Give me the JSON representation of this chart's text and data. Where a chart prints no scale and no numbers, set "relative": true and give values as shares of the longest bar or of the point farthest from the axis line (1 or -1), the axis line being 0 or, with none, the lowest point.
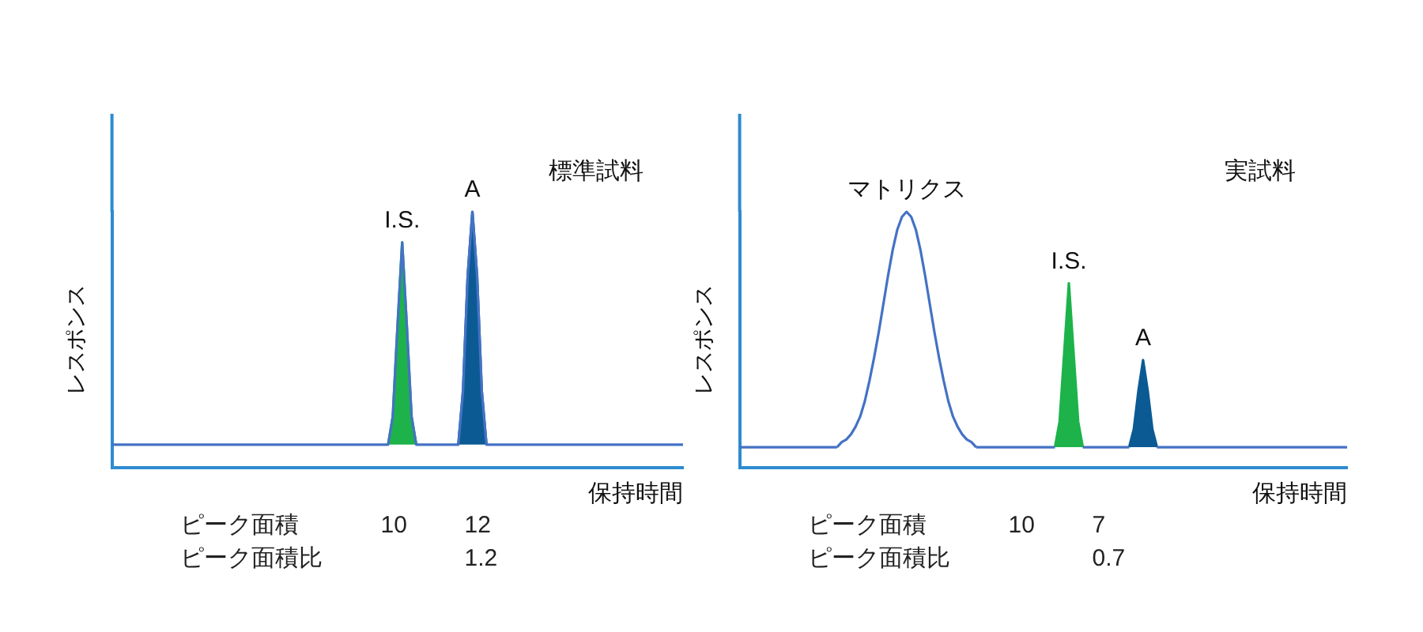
{
  "chart_data": [
    {
      "type": "line",
      "title": "標準試料",
      "xlabel": "保持時間",
      "ylabel": "レスポンス",
      "relative": true,
      "marker": "none",
      "tick_labels": false,
      "grid": false,
      "legend": false,
      "categories": [
        null,
        null,
        null,
        null,
        null,
        null,
        null,
        null,
        null,
        null,
        null,
        null,
        null,
        null,
        null,
        null,
        null,
        null,
        null,
        null,
        null,
        null,
        null,
        null,
        null,
        null,
        null,
        null,
        null,
        null,
        null,
        null,
        null,
        null,
        null,
        null,
        null,
        null,
        null,
        null,
        null,
        null,
        null,
        null,
        null,
        null,
        null,
        null,
        null,
        null,
        null,
        null,
        null,
        null,
        null,
        null,
        null,
        null,
        null,
        null,
        null,
        null,
        null,
        null,
        null,
        null,
        null,
        null,
        null,
        null,
        null,
        null,
        null,
        null,
        null,
        null,
        null,
        null,
        null,
        null,
        null,
        null,
        null,
        null,
        null,
        null,
        null,
        null,
        null,
        null,
        null,
        null,
        null,
        null,
        null,
        null,
        null,
        null,
        null,
        null,
        null,
        null,
        null,
        null,
        null,
        null,
        null,
        null,
        null,
        null,
        null,
        null,
        null,
        null,
        null,
        null,
        null,
        null,
        null,
        null,
        null,
        null,
        null
      ],
      "series": [
        {
          "type": "line",
          "color": "#4472c4",
          "values": [
            0.09,
            0.09,
            0.09,
            0.09,
            0.09,
            0.09,
            0.09,
            0.09,
            0.09,
            0.09,
            0.09,
            0.09,
            0.09,
            0.09,
            0.09,
            0.09,
            0.09,
            0.09,
            0.09,
            0.09,
            0.09,
            0.09,
            0.09,
            0.09,
            0.09,
            0.09,
            0.09,
            0.09,
            0.09,
            0.09,
            0.09,
            0.09,
            0.09,
            0.09,
            0.09,
            0.09,
            0.09,
            0.09,
            0.09,
            0.09,
            0.09,
            0.09,
            0.09,
            0.09,
            0.09,
            0.09,
            0.09,
            0.09,
            0.09,
            0.09,
            0.09,
            0.09,
            0.09,
            0.09,
            0.09,
            0.09,
            0.09,
            0.09,
            0.09,
            0.09,
            0.2,
            0.55,
            0.88,
            0.55,
            0.2,
            0.09,
            0.09,
            0.09,
            0.09,
            0.09,
            0.09,
            0.09,
            0.09,
            0.09,
            0.09,
            0.3,
            0.75,
            1,
            0.75,
            0.3,
            0.09,
            0.09,
            0.09,
            0.09,
            0.09,
            0.09,
            0.09,
            0.09,
            0.09,
            0.09,
            0.09,
            0.09,
            0.09,
            0.09,
            0.09,
            0.09,
            0.09,
            0.09,
            0.09,
            0.09,
            0.09,
            0.09,
            0.09,
            0.09,
            0.09,
            0.09,
            0.09,
            0.09,
            0.09,
            0.09,
            0.09,
            0.09,
            0.09,
            0.09,
            0.09,
            0.09,
            0.09,
            0.09,
            0.09,
            0.09,
            0.09,
            0.09,
            0.09
          ]
        },
        {
          "type": "area",
          "name": "I.S.",
          "color": "#1db34a",
          "values": [
            null,
            null,
            null,
            null,
            null,
            null,
            null,
            null,
            null,
            null,
            null,
            null,
            null,
            null,
            null,
            null,
            null,
            null,
            null,
            null,
            null,
            null,
            null,
            null,
            null,
            null,
            null,
            null,
            null,
            null,
            null,
            null,
            null,
            null,
            null,
            null,
            null,
            null,
            null,
            null,
            null,
            null,
            null,
            null,
            null,
            null,
            null,
            null,
            null,
            null,
            null,
            null,
            null,
            null,
            null,
            null,
            null,
            null,
            null,
            0.09,
            0.2,
            0.55,
            0.88,
            0.55,
            0.2,
            0.09,
            null,
            null,
            null,
            null,
            null,
            null,
            null,
            null,
            null,
            null,
            null,
            null,
            null,
            null,
            null,
            null,
            null,
            null,
            null,
            null,
            null,
            null,
            null,
            null,
            null,
            null,
            null,
            null,
            null,
            null,
            null,
            null,
            null,
            null,
            null,
            null,
            null,
            null,
            null,
            null,
            null,
            null,
            null,
            null,
            null,
            null,
            null,
            null,
            null,
            null,
            null,
            null,
            null,
            null,
            null,
            null,
            null
          ]
        },
        {
          "type": "area",
          "name": "A",
          "color": "#0b5a94",
          "values": [
            null,
            null,
            null,
            null,
            null,
            null,
            null,
            null,
            null,
            null,
            null,
            null,
            null,
            null,
            null,
            null,
            null,
            null,
            null,
            null,
            null,
            null,
            null,
            null,
            null,
            null,
            null,
            null,
            null,
            null,
            null,
            null,
            null,
            null,
            null,
            null,
            null,
            null,
            null,
            null,
            null,
            null,
            null,
            null,
            null,
            null,
            null,
            null,
            null,
            null,
            null,
            null,
            null,
            null,
            null,
            null,
            null,
            null,
            null,
            null,
            null,
            null,
            null,
            null,
            null,
            null,
            null,
            null,
            null,
            null,
            null,
            null,
            null,
            null,
            0.09,
            0.3,
            0.75,
            1,
            0.75,
            0.3,
            0.09,
            null,
            null,
            null,
            null,
            null,
            null,
            null,
            null,
            null,
            null,
            null,
            null,
            null,
            null,
            null,
            null,
            null,
            null,
            null,
            null,
            null,
            null,
            null,
            null,
            null,
            null,
            null,
            null,
            null,
            null,
            null,
            null,
            null,
            null,
            null,
            null,
            null,
            null,
            null,
            null,
            null,
            null
          ]
        }
      ],
      "annotations": [
        "ピーク面積\t10\t12",
        "ピーク面積比\t\t1.2"
      ]
    },
    {
      "type": "line",
      "title": "実試料",
      "xlabel": "保持時間",
      "ylabel": "レスポンス",
      "relative": true,
      "marker": "none",
      "tick_labels": false,
      "grid": false,
      "legend": false,
      "categories": [
        null,
        null,
        null,
        null,
        null,
        null,
        null,
        null,
        null,
        null,
        null,
        null,
        null,
        null,
        null,
        null,
        null,
        null,
        null,
        null,
        null,
        null,
        null,
        null,
        null,
        null,
        null,
        null,
        null,
        null,
        null,
        null,
        null,
        null,
        null,
        null,
        null,
        null,
        null,
        null,
        null,
        null,
        null,
        null,
        null,
        null,
        null,
        null,
        null,
        null,
        null,
        null,
        null,
        null,
        null,
        null,
        null,
        null,
        null,
        null,
        null,
        null,
        null,
        null,
        null,
        null,
        null,
        null,
        null,
        null,
        null,
        null,
        null,
        null,
        null,
        null,
        null,
        null,
        null,
        null,
        null,
        null,
        null,
        null,
        null,
        null,
        null,
        null,
        null,
        null,
        null,
        null,
        null,
        null,
        null,
        null,
        null,
        null,
        null,
        null,
        null,
        null,
        null,
        null,
        null,
        null,
        null,
        null,
        null,
        null,
        null,
        null,
        null,
        null,
        null,
        null,
        null,
        null,
        null,
        null,
        null,
        null,
        null,
        null,
        null,
        null,
        null,
        null,
        null,
        null,
        null,
        null
      ],
      "series": [
        {
          "type": "line",
          "color": "#4472c4",
          "values": [
            0.08,
            0.08,
            0.08,
            0.08,
            0.08,
            0.08,
            0.08,
            0.08,
            0.08,
            0.08,
            0.08,
            0.08,
            0.08,
            0.08,
            0.08,
            0.08,
            0.08,
            0.08,
            0.08,
            0.08,
            0.08,
            0.08,
            null,
            null,
            null,
            null,
            null,
            null,
            null,
            null,
            null,
            null,
            null,
            null,
            null,
            null,
            null,
            null,
            null,
            null,
            null,
            null,
            null,
            null,
            null,
            null,
            null,
            null,
            null,
            null,
            null,
            0.08,
            0.08,
            0.08,
            0.08,
            0.08,
            0.08,
            0.08,
            0.08,
            0.08,
            0.08,
            0.08,
            0.08,
            0.08,
            0.08,
            0.08,
            0.08,
            0.08,
            0.08,
            null,
            null,
            null,
            null,
            null,
            0.08,
            0.08,
            0.08,
            0.08,
            0.08,
            0.08,
            0.08,
            0.08,
            0.08,
            0.08,
            0.08,
            null,
            null,
            null,
            null,
            null,
            0.08,
            0.08,
            0.08,
            0.08,
            0.08,
            0.08,
            0.08,
            0.08,
            0.08,
            0.08,
            0.08,
            0.08,
            0.08,
            0.08,
            0.08,
            0.08,
            0.08,
            0.08,
            0.08,
            0.08,
            0.08,
            0.08,
            0.08,
            0.08,
            0.08,
            0.08,
            0.08,
            0.08,
            0.08,
            0.08,
            0.08,
            0.08,
            0.08,
            0.08,
            0.08,
            0.08,
            0.08,
            0.08,
            0.08,
            0.08,
            0.08,
            0.08
          ]
        },
        {
          "type": "line",
          "name": "マトリクス",
          "color": "#4472c4",
          "values": [
            null,
            null,
            null,
            null,
            null,
            null,
            null,
            null,
            null,
            null,
            null,
            null,
            null,
            null,
            null,
            null,
            null,
            null,
            null,
            null,
            null,
            0.08,
            0.1,
            0.11,
            0.13,
            0.16,
            0.2,
            0.26,
            0.34,
            0.43,
            0.53,
            0.64,
            0.75,
            0.85,
            0.93,
            0.98,
            1,
            0.98,
            0.93,
            0.85,
            0.75,
            0.64,
            0.53,
            0.43,
            0.34,
            0.26,
            0.2,
            0.16,
            0.13,
            0.11,
            0.1,
            0.08,
            null,
            null,
            null,
            null,
            null,
            null,
            null,
            null,
            null,
            null,
            null,
            null,
            null,
            null,
            null,
            null,
            null,
            null,
            null,
            null,
            null,
            null,
            null,
            null,
            null,
            null,
            null,
            null,
            null,
            null,
            null,
            null,
            null,
            null,
            null,
            null,
            null,
            null,
            null,
            null,
            null,
            null,
            null,
            null,
            null,
            null,
            null,
            null,
            null,
            null,
            null,
            null,
            null,
            null,
            null,
            null,
            null,
            null,
            null,
            null,
            null,
            null,
            null,
            null,
            null,
            null,
            null,
            null,
            null,
            null,
            null,
            null,
            null,
            null,
            null,
            null,
            null,
            null,
            null,
            null
          ]
        },
        {
          "type": "area",
          "name": "I.S.",
          "color": "#1db34a",
          "values": [
            null,
            null,
            null,
            null,
            null,
            null,
            null,
            null,
            null,
            null,
            null,
            null,
            null,
            null,
            null,
            null,
            null,
            null,
            null,
            null,
            null,
            null,
            null,
            null,
            null,
            null,
            null,
            null,
            null,
            null,
            null,
            null,
            null,
            null,
            null,
            null,
            null,
            null,
            null,
            null,
            null,
            null,
            null,
            null,
            null,
            null,
            null,
            null,
            null,
            null,
            null,
            null,
            null,
            null,
            null,
            null,
            null,
            null,
            null,
            null,
            null,
            null,
            null,
            null,
            null,
            null,
            null,
            null,
            0.08,
            0.18,
            0.45,
            0.72,
            0.45,
            0.18,
            0.08,
            null,
            null,
            null,
            null,
            null,
            null,
            null,
            null,
            null,
            null,
            null,
            null,
            null,
            null,
            null,
            null,
            null,
            null,
            null,
            null,
            null,
            null,
            null,
            null,
            null,
            null,
            null,
            null,
            null,
            null,
            null,
            null,
            null,
            null,
            null,
            null,
            null,
            null,
            null,
            null,
            null,
            null,
            null,
            null,
            null,
            null,
            null,
            null,
            null,
            null,
            null,
            null,
            null,
            null,
            null,
            null,
            null
          ]
        },
        {
          "type": "area",
          "name": "A",
          "color": "#0b5a94",
          "values": [
            null,
            null,
            null,
            null,
            null,
            null,
            null,
            null,
            null,
            null,
            null,
            null,
            null,
            null,
            null,
            null,
            null,
            null,
            null,
            null,
            null,
            null,
            null,
            null,
            null,
            null,
            null,
            null,
            null,
            null,
            null,
            null,
            null,
            null,
            null,
            null,
            null,
            null,
            null,
            null,
            null,
            null,
            null,
            null,
            null,
            null,
            null,
            null,
            null,
            null,
            null,
            null,
            null,
            null,
            null,
            null,
            null,
            null,
            null,
            null,
            null,
            null,
            null,
            null,
            null,
            null,
            null,
            null,
            null,
            null,
            null,
            null,
            null,
            null,
            null,
            null,
            null,
            null,
            null,
            null,
            null,
            null,
            null,
            null,
            0.08,
            0.15,
            0.3,
            0.42,
            0.3,
            0.15,
            0.08,
            null,
            null,
            null,
            null,
            null,
            null,
            null,
            null,
            null,
            null,
            null,
            null,
            null,
            null,
            null,
            null,
            null,
            null,
            null,
            null,
            null,
            null,
            null,
            null,
            null,
            null,
            null,
            null,
            null,
            null,
            null,
            null,
            null,
            null,
            null,
            null,
            null,
            null,
            null,
            null,
            null
          ]
        }
      ],
      "annotations": [
        "ピーク面積\t10\t7",
        "ピーク面積比\t\t0.7"
      ]
    }
  ]
}
